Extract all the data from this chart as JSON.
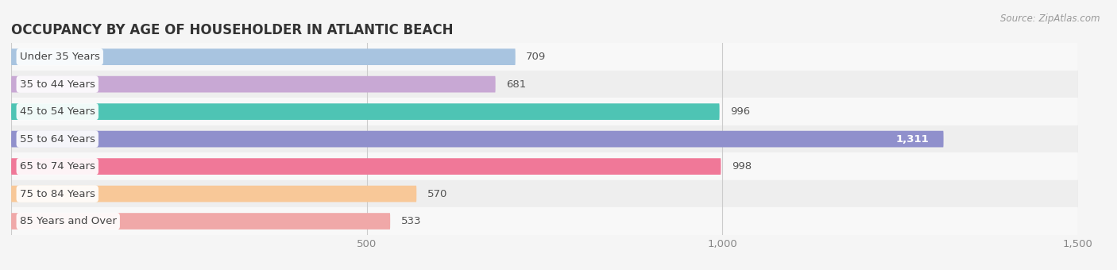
{
  "title": "OCCUPANCY BY AGE OF HOUSEHOLDER IN ATLANTIC BEACH",
  "source": "Source: ZipAtlas.com",
  "categories": [
    "Under 35 Years",
    "35 to 44 Years",
    "45 to 54 Years",
    "55 to 64 Years",
    "65 to 74 Years",
    "75 to 84 Years",
    "85 Years and Over"
  ],
  "values": [
    709,
    681,
    996,
    1311,
    998,
    570,
    533
  ],
  "bar_colors": [
    "#a8c4e0",
    "#c8a8d4",
    "#4ec4b4",
    "#9090cc",
    "#f07898",
    "#f8c898",
    "#f0a8a8"
  ],
  "value_labels": [
    "709",
    "681",
    "996",
    "1,311",
    "998",
    "570",
    "533"
  ],
  "value_inside": [
    false,
    false,
    false,
    true,
    false,
    false,
    false
  ],
  "xlim": [
    0,
    1500
  ],
  "xticks": [
    0,
    500,
    1000,
    1500
  ],
  "xtick_labels": [
    "",
    "500",
    "1,000",
    "1,500"
  ],
  "bar_height": 0.6,
  "background_color": "#f5f5f5",
  "row_bg_light": "#f8f8f8",
  "row_bg_dark": "#eeeeee",
  "title_fontsize": 12,
  "label_fontsize": 9.5,
  "value_fontsize": 9.5
}
